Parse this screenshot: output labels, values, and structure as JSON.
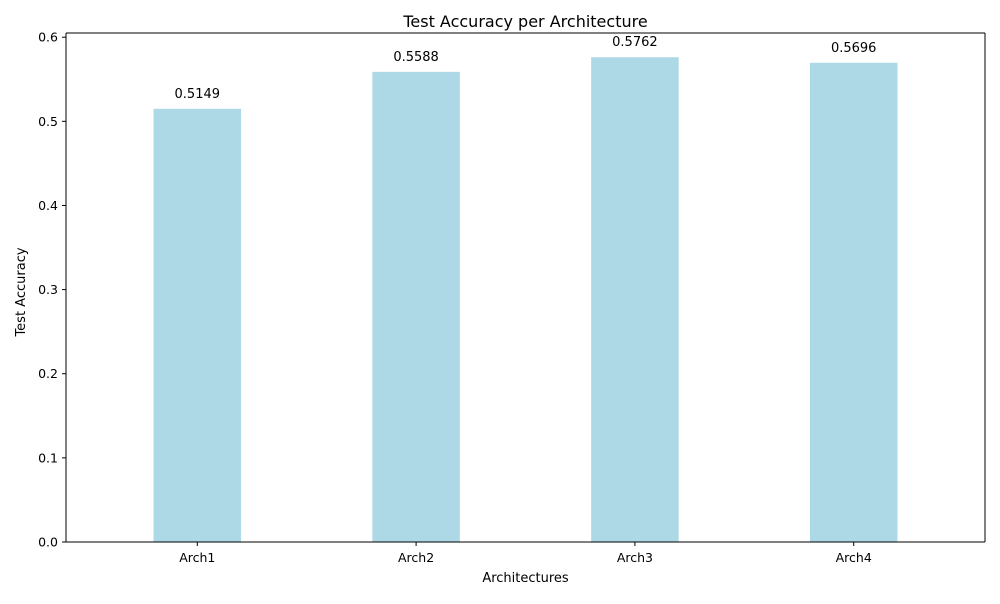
{
  "chart_data": {
    "type": "bar",
    "title": "Test Accuracy per Architecture",
    "xlabel": "Architectures",
    "ylabel": "Test Accuracy",
    "categories": [
      "Arch1",
      "Arch2",
      "Arch3",
      "Arch4"
    ],
    "values": [
      0.5149,
      0.5588,
      0.5762,
      0.5696
    ],
    "value_labels": [
      "0.5149",
      "0.5588",
      "0.5762",
      "0.5696"
    ],
    "ylim": [
      0,
      0.605
    ],
    "yticks": [
      0.0,
      0.1,
      0.2,
      0.3,
      0.4,
      0.5,
      0.6
    ],
    "ytick_labels": [
      "0.0",
      "0.1",
      "0.2",
      "0.3",
      "0.4",
      "0.5",
      "0.6"
    ],
    "grid": false,
    "legend": "none",
    "bar_color": "#add8e6"
  }
}
